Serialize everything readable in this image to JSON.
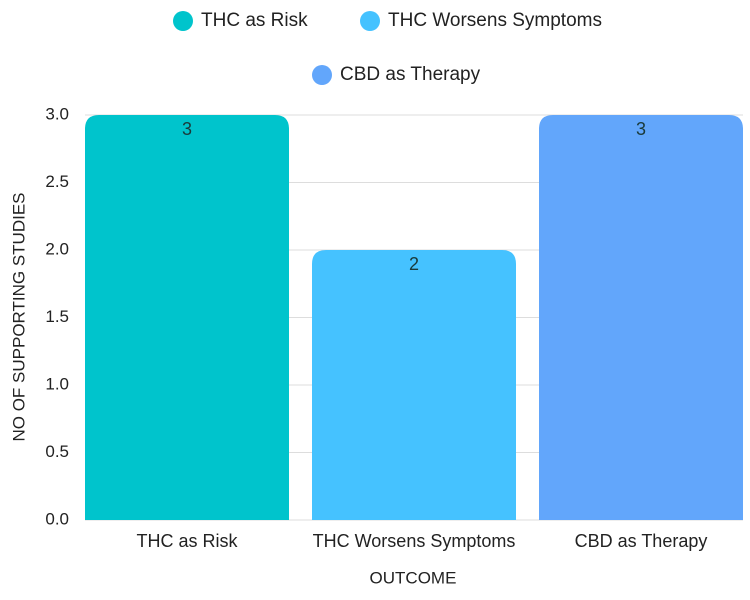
{
  "chart_data": {
    "type": "bar",
    "title": "",
    "xlabel": "OUTCOME",
    "ylabel": "NO OF SUPPORTING STUDIES",
    "categories": [
      "THC as Risk",
      "THC Worsens Symptoms",
      "CBD as Therapy"
    ],
    "values": [
      3,
      2,
      3
    ],
    "data_labels": [
      "3",
      "2",
      "3"
    ],
    "colors": [
      "#00c4cc",
      "#45c2ff",
      "#62a6fb"
    ],
    "ylim": [
      0,
      3.0
    ],
    "yticks": [
      "0.0",
      "0.5",
      "1.0",
      "1.5",
      "2.0",
      "2.5",
      "3.0"
    ],
    "grid": true,
    "legend_position": "top-center",
    "legend": [
      {
        "label": "THC as Risk",
        "color": "#00c4cc"
      },
      {
        "label": "THC Worsens Symptoms",
        "color": "#45c2ff"
      },
      {
        "label": "CBD as Therapy",
        "color": "#62a6fb"
      }
    ]
  }
}
